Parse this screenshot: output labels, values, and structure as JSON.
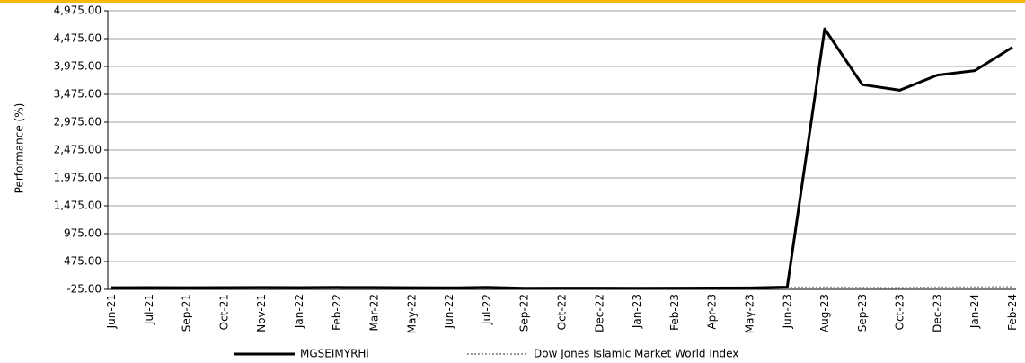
{
  "chart_data": {
    "type": "line",
    "y_label": "Performance (%)",
    "categories": [
      "Jun-21",
      "Jul-21",
      "Sep-21",
      "Oct-21",
      "Nov-21",
      "Jan-22",
      "Feb-22",
      "Mar-22",
      "May-22",
      "Jun-22",
      "Jul-22",
      "Sep-22",
      "Oct-22",
      "Dec-22",
      "Jan-23",
      "Feb-23",
      "Apr-23",
      "May-23",
      "Jun-23",
      "Aug-23",
      "Sep-23",
      "Oct-23",
      "Dec-23",
      "Jan-24",
      "Feb-24"
    ],
    "series": [
      {
        "name": "MGSEIMYRHi",
        "color": "#000000",
        "style": "solid",
        "values": [
          5,
          8,
          6,
          7,
          9,
          8,
          10,
          9,
          6,
          2,
          10,
          -5,
          -3,
          -2,
          -4,
          -2,
          -1,
          0,
          15,
          4650,
          3650,
          3550,
          3820,
          3900,
          4320
        ]
      },
      {
        "name": "Dow Jones Islamic Market World Index",
        "color": "#999999",
        "style": "dotted",
        "values": [
          5,
          8,
          7,
          9,
          10,
          12,
          12,
          14,
          10,
          3,
          2,
          -4,
          -3,
          -2,
          0,
          -1,
          0,
          3,
          8,
          12,
          6,
          2,
          10,
          14,
          18
        ]
      }
    ],
    "ylim": [
      -25,
      4975
    ],
    "yticks": [
      {
        "value": -25,
        "label": "-25.00"
      },
      {
        "value": 475,
        "label": "475.00"
      },
      {
        "value": 975,
        "label": "975.00"
      },
      {
        "value": 1475,
        "label": "1,475.00"
      },
      {
        "value": 1975,
        "label": "1,975.00"
      },
      {
        "value": 2475,
        "label": "2,475.00"
      },
      {
        "value": 2975,
        "label": "2,975.00"
      },
      {
        "value": 3475,
        "label": "3,475.00"
      },
      {
        "value": 3975,
        "label": "3,975.00"
      },
      {
        "value": 4475,
        "label": "4,475.00"
      },
      {
        "value": 4975,
        "label": "4,975.00"
      }
    ],
    "grid": true,
    "legend": "bottom"
  }
}
